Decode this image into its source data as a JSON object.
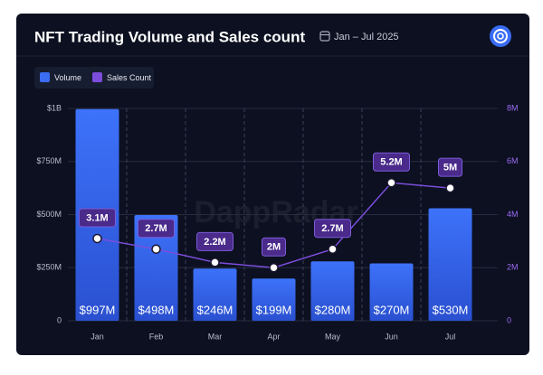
{
  "chart_data": {
    "type": "bar-line",
    "title": "NFT Trading Volume and Sales count",
    "subtitle": "Jan – Jul 2025",
    "watermark": "DappRadar",
    "categories": [
      "Jan",
      "Feb",
      "Mar",
      "Apr",
      "May",
      "Jun",
      "Jul"
    ],
    "series": [
      {
        "name": "Volume",
        "color": "#3a6cf4",
        "type": "bar",
        "values": [
          997000000,
          498000000,
          246000000,
          199000000,
          280000000,
          270000000,
          530000000
        ],
        "value_labels": [
          "$997M",
          "$498M",
          "$246M",
          "$199M",
          "$280M",
          "$270M",
          "$530M"
        ]
      },
      {
        "name": "Sales Count",
        "color": "#7c4ddb",
        "type": "line",
        "axis": "y2",
        "values": [
          3100000,
          2700000,
          2200000,
          2000000,
          2700000,
          5200000,
          5000000
        ],
        "value_labels": [
          "3.1M",
          "2.7M",
          "2.2M",
          "2M",
          "2.7M",
          "5.2M",
          "5M"
        ]
      }
    ],
    "ylim": [
      0,
      1000000000
    ],
    "yticks": [
      0,
      {
        "value": 250000000,
        "label": "$250M"
      },
      {
        "value": 500000000,
        "label": "$500M"
      },
      {
        "value": 750000000,
        "label": "$750M"
      },
      {
        "value": 1000000000,
        "label": "$1B"
      }
    ],
    "y2lim": [
      0,
      8000000
    ],
    "y2ticks": [
      0,
      {
        "value": 2000000,
        "label": "2M"
      },
      {
        "value": 4000000,
        "label": "4M"
      },
      {
        "value": 6000000,
        "label": "6M"
      },
      {
        "value": 8000000,
        "label": "8M"
      }
    ],
    "grid": true
  }
}
